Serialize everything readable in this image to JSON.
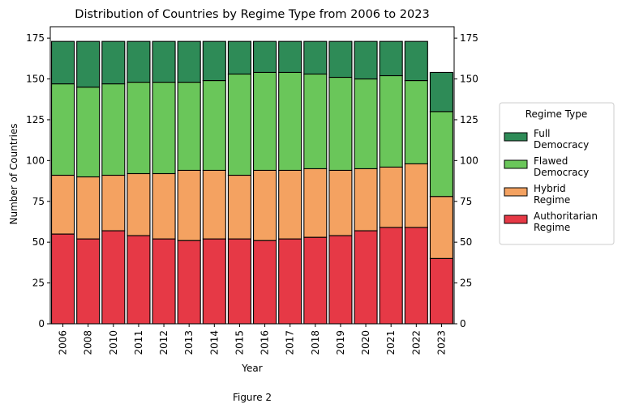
{
  "figure_caption": "Figure 2",
  "chart_data": {
    "type": "bar",
    "stacked": true,
    "title": "Distribution of Countries by Regime Type from 2006 to 2023",
    "xlabel": "Year",
    "ylabel": "Number of Countries",
    "ylim": [
      0,
      182
    ],
    "yticks": [
      0,
      25,
      50,
      75,
      100,
      125,
      150,
      175
    ],
    "secondary_y_axis": true,
    "grid": false,
    "legend": {
      "title": "Regime Type",
      "placement": "outside-right"
    },
    "categories": [
      "2006",
      "2008",
      "2010",
      "2011",
      "2012",
      "2013",
      "2014",
      "2015",
      "2016",
      "2017",
      "2018",
      "2019",
      "2020",
      "2021",
      "2022",
      "2023"
    ],
    "series": [
      {
        "name": "Authoritarian\nRegime",
        "color": "#e63946",
        "values": [
          55,
          52,
          57,
          54,
          52,
          51,
          52,
          52,
          51,
          52,
          53,
          54,
          57,
          59,
          59,
          40
        ]
      },
      {
        "name": "Hybrid\nRegime",
        "color": "#f4a261",
        "values": [
          36,
          38,
          34,
          38,
          40,
          43,
          42,
          39,
          43,
          42,
          42,
          40,
          38,
          37,
          39,
          38
        ]
      },
      {
        "name": "Flawed\nDemocracy",
        "color": "#6ac65a",
        "values": [
          56,
          55,
          56,
          56,
          56,
          54,
          55,
          62,
          60,
          60,
          58,
          57,
          55,
          56,
          51,
          52
        ]
      },
      {
        "name": "Full\nDemocracy",
        "color": "#2e8b57",
        "values": [
          26,
          28,
          26,
          25,
          25,
          25,
          24,
          20,
          19,
          19,
          20,
          22,
          23,
          21,
          24,
          24
        ]
      }
    ]
  }
}
